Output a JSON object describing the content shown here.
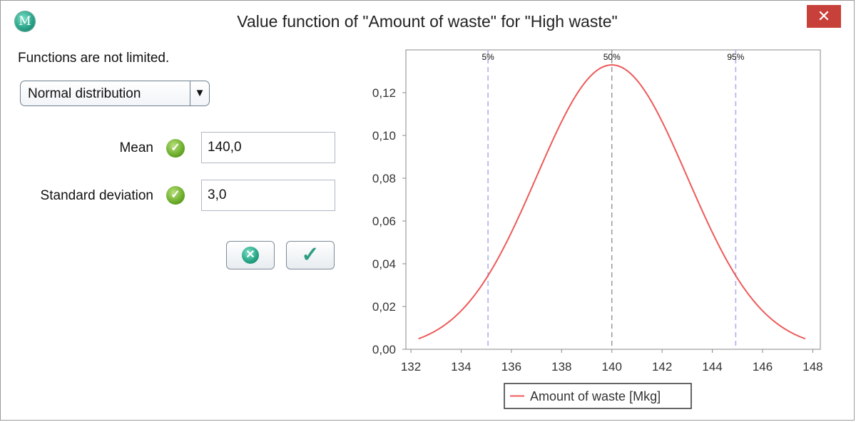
{
  "window": {
    "title": "Value function of \"Amount of waste\" for \"High waste\"",
    "app_icon_letter": "M",
    "close_glyph": "✕"
  },
  "form": {
    "info": "Functions are not limited.",
    "distribution": "Normal distribution",
    "dropdown_arrow": "▼",
    "fields": [
      {
        "label": "Mean",
        "value": "140,0"
      },
      {
        "label": "Standard deviation",
        "value": "3,0"
      }
    ],
    "buttons": {
      "cancel_icon": "close-circle-icon",
      "ok_icon": "checkmark-icon"
    }
  },
  "chart_data": {
    "type": "line",
    "function": "normal-pdf",
    "mean": 140.0,
    "std": 3.0,
    "x_range": [
      132.3,
      147.7
    ],
    "xlim": [
      131.8,
      148.3
    ],
    "ylim": [
      0.0,
      0.14
    ],
    "x_ticks": [
      "132",
      "134",
      "136",
      "138",
      "140",
      "142",
      "144",
      "146",
      "148"
    ],
    "y_ticks": [
      "0,00",
      "0,02",
      "0,04",
      "0,06",
      "0,08",
      "0,10",
      "0,12"
    ],
    "percentiles": [
      {
        "label": "5%",
        "x": 135.07
      },
      {
        "label": "50%",
        "x": 140.0
      },
      {
        "label": "95%",
        "x": 144.93
      }
    ],
    "series": [
      {
        "name": "Amount of waste [Mkg]",
        "color": "#ee5a5a"
      }
    ],
    "marker_colors": {
      "outer": "#b6b6ef",
      "median": "#8a8a8a"
    },
    "legend": "bottom-center",
    "grid": false
  }
}
